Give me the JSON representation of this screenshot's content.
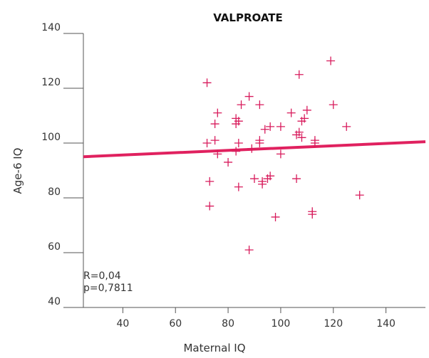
{
  "chart_data": {
    "type": "scatter",
    "title": "VALPROATE",
    "xlabel": "Maternal IQ",
    "ylabel": "Age-6 IQ",
    "xlim": [
      25,
      155
    ],
    "ylim": [
      40,
      140
    ],
    "x_ticks": [
      40,
      60,
      80,
      100,
      120,
      140
    ],
    "y_ticks": [
      40,
      60,
      80,
      100,
      120,
      140
    ],
    "grid": false,
    "annotations": [
      "R=0,04",
      "p=0,7811"
    ],
    "colors": {
      "points": "#d81b5c",
      "trend": "#e0215f",
      "axis": "#555555"
    },
    "trend_line": {
      "x": [
        25,
        155
      ],
      "y": [
        95,
        100.5
      ]
    },
    "points": [
      {
        "x": 72,
        "y": 122
      },
      {
        "x": 72,
        "y": 100
      },
      {
        "x": 73,
        "y": 86
      },
      {
        "x": 73,
        "y": 77
      },
      {
        "x": 75,
        "y": 107
      },
      {
        "x": 75,
        "y": 101
      },
      {
        "x": 76,
        "y": 111
      },
      {
        "x": 76,
        "y": 96
      },
      {
        "x": 80,
        "y": 93
      },
      {
        "x": 83,
        "y": 109
      },
      {
        "x": 83,
        "y": 107
      },
      {
        "x": 83,
        "y": 97
      },
      {
        "x": 84,
        "y": 108
      },
      {
        "x": 84,
        "y": 100
      },
      {
        "x": 84,
        "y": 84
      },
      {
        "x": 85,
        "y": 114
      },
      {
        "x": 88,
        "y": 117
      },
      {
        "x": 88,
        "y": 61
      },
      {
        "x": 89,
        "y": 98
      },
      {
        "x": 90,
        "y": 87
      },
      {
        "x": 92,
        "y": 114
      },
      {
        "x": 92,
        "y": 101
      },
      {
        "x": 92,
        "y": 100
      },
      {
        "x": 93,
        "y": 86
      },
      {
        "x": 93,
        "y": 85
      },
      {
        "x": 94,
        "y": 105
      },
      {
        "x": 95,
        "y": 87
      },
      {
        "x": 96,
        "y": 106
      },
      {
        "x": 96,
        "y": 88
      },
      {
        "x": 98,
        "y": 73
      },
      {
        "x": 100,
        "y": 106
      },
      {
        "x": 100,
        "y": 96
      },
      {
        "x": 104,
        "y": 111
      },
      {
        "x": 106,
        "y": 103
      },
      {
        "x": 106,
        "y": 87
      },
      {
        "x": 107,
        "y": 125
      },
      {
        "x": 107,
        "y": 104
      },
      {
        "x": 108,
        "y": 108
      },
      {
        "x": 108,
        "y": 102
      },
      {
        "x": 109,
        "y": 109
      },
      {
        "x": 110,
        "y": 112
      },
      {
        "x": 112,
        "y": 75
      },
      {
        "x": 112,
        "y": 74
      },
      {
        "x": 113,
        "y": 101
      },
      {
        "x": 113,
        "y": 100
      },
      {
        "x": 119,
        "y": 130
      },
      {
        "x": 120,
        "y": 114
      },
      {
        "x": 125,
        "y": 106
      },
      {
        "x": 130,
        "y": 81
      }
    ]
  }
}
